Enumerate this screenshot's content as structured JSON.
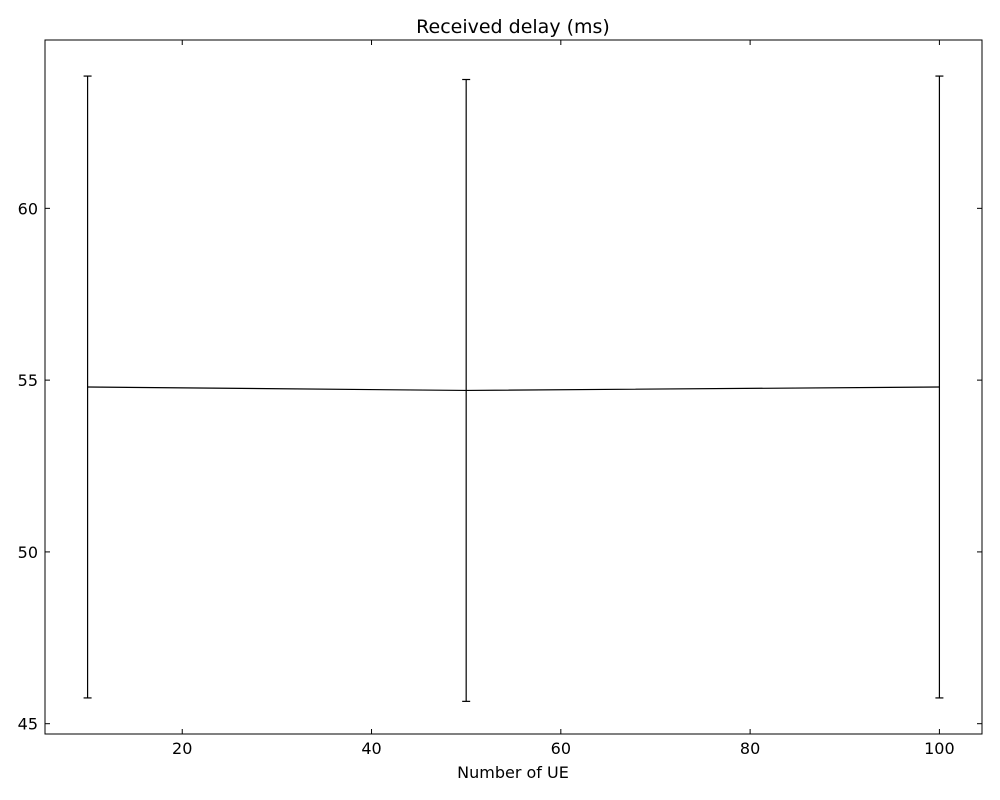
{
  "chart_data": {
    "type": "line",
    "title": "Received delay (ms)",
    "xlabel": "Number of UE",
    "ylabel": "",
    "xlim": [
      5.5,
      104.5
    ],
    "ylim": [
      44.7,
      64.9
    ],
    "xticks": [
      20,
      40,
      60,
      80,
      100
    ],
    "xtick_labels": [
      "20",
      "40",
      "60",
      "80",
      "100"
    ],
    "yticks": [
      45,
      50,
      55,
      60
    ],
    "ytick_labels": [
      "45",
      "50",
      "55",
      "60"
    ],
    "grid": false,
    "legend": "none",
    "color": "#000000",
    "series": [
      {
        "x": [
          10,
          50,
          100
        ],
        "y": [
          54.8,
          54.7,
          54.8
        ],
        "yerr_lower": [
          45.75,
          45.65,
          45.75
        ],
        "yerr_upper": [
          63.85,
          63.75,
          63.85
        ]
      }
    ]
  }
}
